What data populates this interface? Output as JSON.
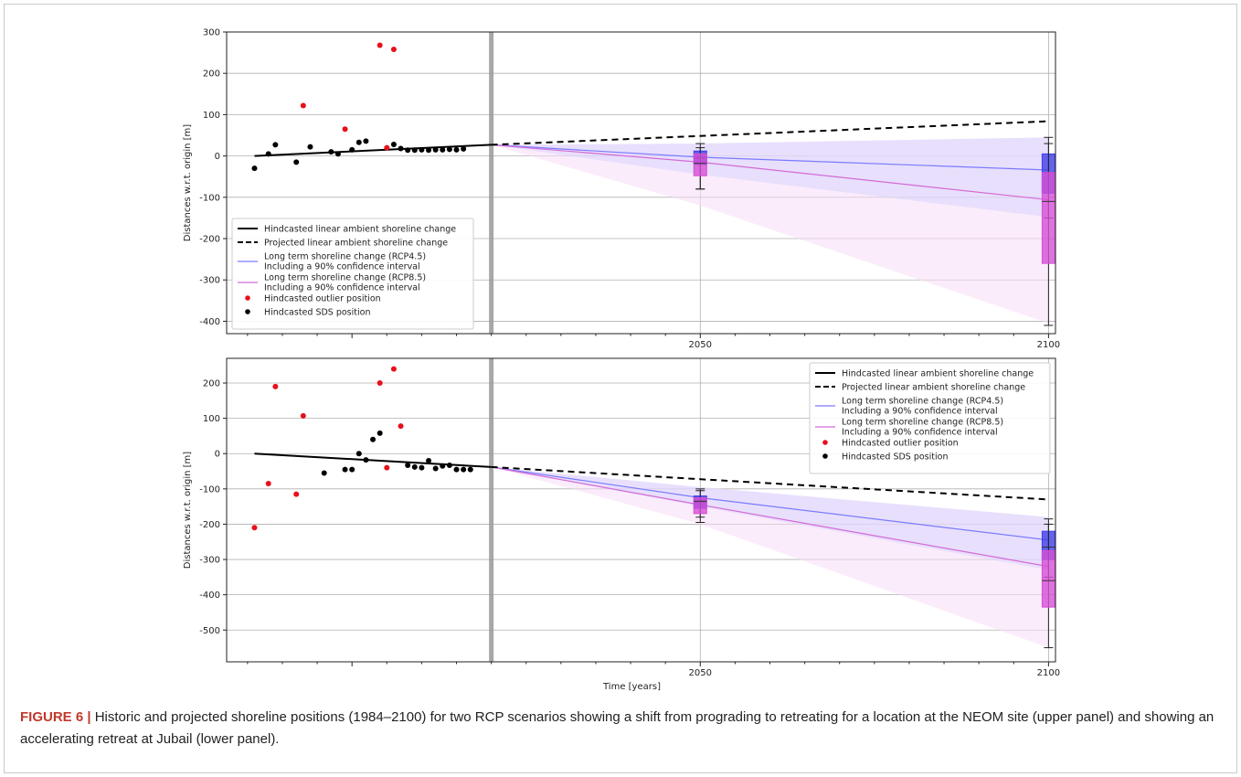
{
  "caption": {
    "label": "FIGURE 6 |",
    "text": " Historic and projected shoreline positions (1984–2100) for two RCP scenarios showing a shift from prograding to retreating for a location at the NEOM site (upper panel) and showing an accelerating retreat at Jubail (lower panel)."
  },
  "colors": {
    "hindcast_line": "#000000",
    "rcp45": "#7b7bff",
    "rcp45_band": "#d9d6ff",
    "rcp85": "#d46ad4",
    "rcp85_band": "#f7dcf7",
    "outlier": "#e8101a",
    "sds": "#000000",
    "box45": "#3f3fe6",
    "box85": "#d64fd6",
    "grid": "#b0b0b0",
    "divider": "#999999"
  },
  "legend": [
    {
      "kind": "solid",
      "lines": [
        "Hindcasted linear ambient shoreline change"
      ]
    },
    {
      "kind": "dashed",
      "lines": [
        "Projected linear ambient shoreline change"
      ]
    },
    {
      "kind": "rcp45",
      "lines": [
        "Long term shoreline change (RCP4.5)",
        "Including a 90% confidence interval"
      ]
    },
    {
      "kind": "rcp85",
      "lines": [
        "Long term shoreline change (RCP8.5)",
        "Including a 90% confidence interval"
      ]
    },
    {
      "kind": "outlier",
      "lines": [
        "Hindcasted outlier position"
      ]
    },
    {
      "kind": "sds",
      "lines": [
        "Hindcasted SDS position"
      ]
    }
  ],
  "chart_data": [
    {
      "type": "line",
      "panel": "upper",
      "ylabel": "Distances w.r.t. origin [m]",
      "xlabel": "",
      "xlim": [
        1982,
        2101
      ],
      "ylim": [
        -430,
        300
      ],
      "yticks": [
        300,
        200,
        100,
        0,
        -100,
        -200,
        -300,
        -400
      ],
      "xtick_labels": [
        {
          "x": 2050,
          "label": "2050"
        },
        {
          "x": 2100,
          "label": "2100"
        }
      ],
      "present_divider_x": 2020,
      "legend_position": "lower-left",
      "hindcast_line": {
        "x": [
          1986,
          2020
        ],
        "y": [
          0,
          27
        ]
      },
      "projected_line": {
        "x": [
          2020,
          2100
        ],
        "y": [
          27,
          84
        ]
      },
      "rcp45": {
        "x": [
          2020,
          2050,
          2100
        ],
        "y": [
          27,
          -3,
          -34
        ],
        "upper": [
          27,
          30,
          45
        ],
        "lower": [
          27,
          -45,
          -148
        ]
      },
      "rcp85": {
        "x": [
          2020,
          2050,
          2100
        ],
        "y": [
          27,
          -15,
          -106
        ],
        "upper": [
          27,
          30,
          45
        ],
        "lower": [
          27,
          -120,
          -405
        ]
      },
      "outliers": {
        "x": [
          1993,
          1999,
          2004,
          2006,
          2005
        ],
        "y": [
          122,
          65,
          268,
          258,
          20
        ]
      },
      "sds": {
        "x": [
          1986,
          1988,
          1989,
          1992,
          1994,
          1997,
          1998,
          2000,
          2001,
          2002,
          2006,
          2007,
          2008,
          2009,
          2010,
          2011,
          2012,
          2013,
          2014,
          2015,
          2016
        ],
        "y": [
          -30,
          5,
          27,
          -15,
          22,
          10,
          5,
          15,
          33,
          36,
          28,
          18,
          14,
          14,
          15,
          14,
          15,
          15,
          16,
          15,
          17
        ]
      },
      "boxes": [
        {
          "year": 2050,
          "scenario": "RCP4.5",
          "whisker_low": -80,
          "q1": -20,
          "median": -5,
          "q3": 12,
          "whisker_high": 30
        },
        {
          "year": 2050,
          "scenario": "RCP8.5",
          "whisker_low": -80,
          "q1": -48,
          "median": -18,
          "q3": 5,
          "whisker_high": 20
        },
        {
          "year": 2100,
          "scenario": "RCP4.5",
          "whisker_low": -150,
          "q1": -90,
          "median": -40,
          "q3": 5,
          "whisker_high": 45
        },
        {
          "year": 2100,
          "scenario": "RCP8.5",
          "whisker_low": -410,
          "q1": -260,
          "median": -110,
          "q3": -40,
          "whisker_high": 30
        }
      ]
    },
    {
      "type": "line",
      "panel": "lower",
      "ylabel": "Distances w.r.t. origin [m]",
      "xlabel": "Time [years]",
      "xlim": [
        1982,
        2101
      ],
      "ylim": [
        -590,
        270
      ],
      "yticks": [
        200,
        100,
        0,
        -100,
        -200,
        -300,
        -400,
        -500
      ],
      "xtick_labels": [
        {
          "x": 2050,
          "label": "2050"
        },
        {
          "x": 2100,
          "label": "2100"
        }
      ],
      "present_divider_x": 2020,
      "legend_position": "upper-right",
      "hindcast_line": {
        "x": [
          1986,
          2020
        ],
        "y": [
          0,
          -38
        ]
      },
      "projected_line": {
        "x": [
          2020,
          2100
        ],
        "y": [
          -38,
          -130
        ]
      },
      "rcp45": {
        "x": [
          2020,
          2050,
          2100
        ],
        "y": [
          -38,
          -125,
          -245
        ],
        "upper": [
          -38,
          -95,
          -180
        ],
        "lower": [
          -38,
          -150,
          -330
        ]
      },
      "rcp85": {
        "x": [
          2020,
          2050,
          2100
        ],
        "y": [
          -38,
          -145,
          -320
        ],
        "upper": [
          -38,
          -95,
          -180
        ],
        "lower": [
          -38,
          -200,
          -550
        ]
      },
      "outliers": {
        "x": [
          1986,
          1988,
          1989,
          1992,
          1993,
          2004,
          2005,
          2006,
          2007
        ],
        "y": [
          -210,
          -85,
          190,
          -115,
          107,
          200,
          -40,
          240,
          78
        ]
      },
      "sds": {
        "x": [
          1996,
          1999,
          2000,
          2001,
          2002,
          2003,
          2004,
          2008,
          2009,
          2010,
          2011,
          2012,
          2013,
          2014,
          2015,
          2016,
          2017
        ],
        "y": [
          -55,
          -45,
          -45,
          0,
          -18,
          40,
          58,
          -33,
          -38,
          -40,
          -20,
          -42,
          -35,
          -33,
          -45,
          -45,
          -45
        ]
      },
      "boxes": [
        {
          "year": 2050,
          "scenario": "RCP4.5",
          "whisker_low": -180,
          "q1": -155,
          "median": -137,
          "q3": -120,
          "whisker_high": -100
        },
        {
          "year": 2050,
          "scenario": "RCP8.5",
          "whisker_low": -195,
          "q1": -170,
          "median": -135,
          "q3": -125,
          "whisker_high": -105
        },
        {
          "year": 2100,
          "scenario": "RCP4.5",
          "whisker_low": -350,
          "q1": -300,
          "median": -265,
          "q3": -220,
          "whisker_high": -185
        },
        {
          "year": 2100,
          "scenario": "RCP8.5",
          "whisker_low": -550,
          "q1": -435,
          "median": -360,
          "q3": -275,
          "whisker_high": -200
        }
      ]
    }
  ]
}
